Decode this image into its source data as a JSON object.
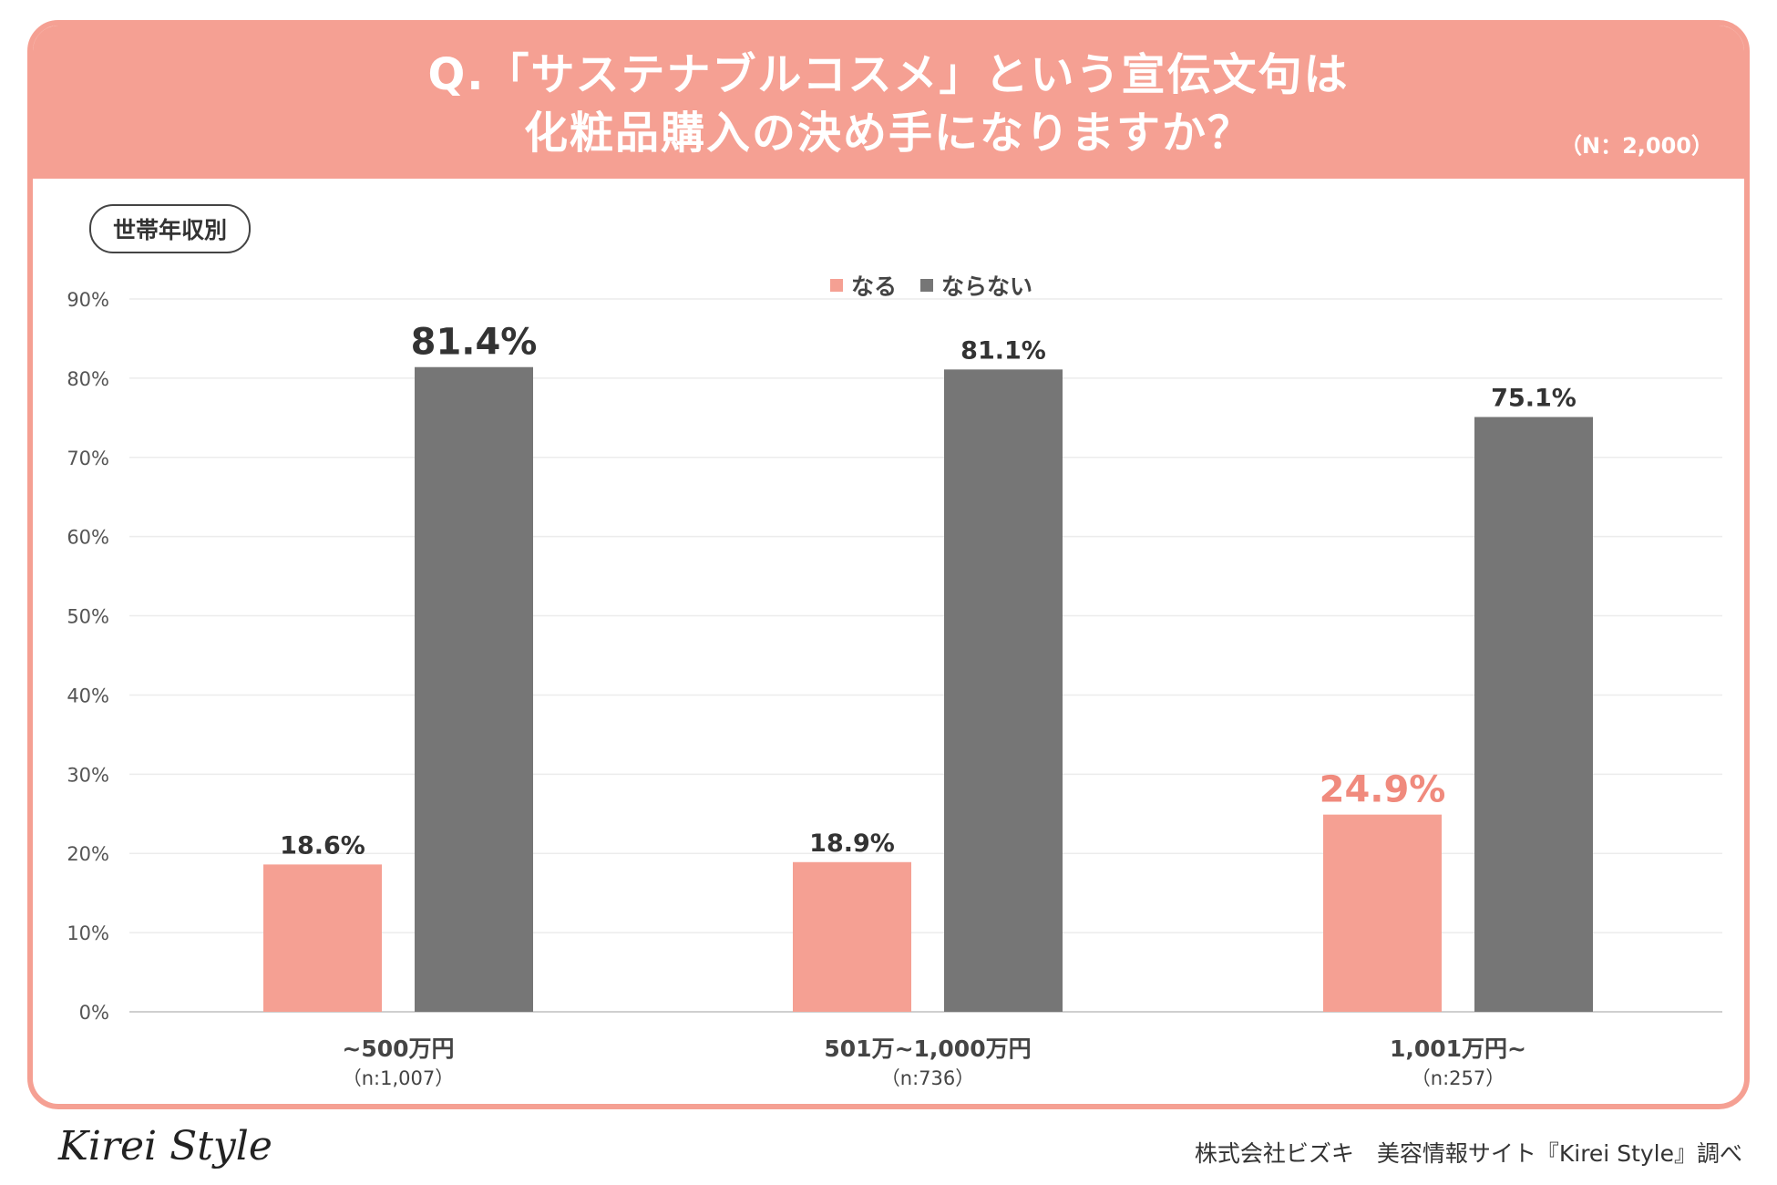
{
  "header": {
    "title_line1": "Q.「サステナブルコスメ」という宣伝文句は",
    "title_line2": "化粧品購入の決め手になりますか？",
    "n_total": "（N：2,000）"
  },
  "segment_label": "世帯年収別",
  "colors": {
    "accent": "#f5a093",
    "gray": "#767676",
    "highlight_text": "#f08a7d"
  },
  "chart_data": {
    "type": "bar",
    "title": "Q.「サステナブルコスメ」という宣伝文句は化粧品購入の決め手になりますか？",
    "xlabel": "",
    "ylabel": "",
    "ylim": [
      0,
      90
    ],
    "yticks": [
      "0%",
      "10%",
      "20%",
      "30%",
      "40%",
      "50%",
      "60%",
      "70%",
      "80%",
      "90%"
    ],
    "yticks_values": [
      0,
      10,
      20,
      30,
      40,
      50,
      60,
      70,
      80,
      90
    ],
    "grid": true,
    "legend_position": "top-center",
    "categories": [
      "~500万円",
      "501万~1,000万円",
      "1,001万円~"
    ],
    "category_n": [
      "（n:1,007）",
      "（n:736）",
      "（n:257）"
    ],
    "series": [
      {
        "name": "なる",
        "color": "#f5a093",
        "values": [
          18.6,
          18.9,
          24.9
        ],
        "labels": [
          "18.6%",
          "18.9%",
          "24.9%"
        ],
        "emphasis": [
          false,
          false,
          true
        ]
      },
      {
        "name": "ならない",
        "color": "#767676",
        "values": [
          81.4,
          81.1,
          75.1
        ],
        "labels": [
          "81.4%",
          "81.1%",
          "75.1%"
        ],
        "emphasis": [
          true,
          false,
          false
        ]
      }
    ]
  },
  "footer": {
    "logo": "Kirei Style",
    "source": "株式会社ビズキ　美容情報サイト『Kirei Style』調べ"
  }
}
